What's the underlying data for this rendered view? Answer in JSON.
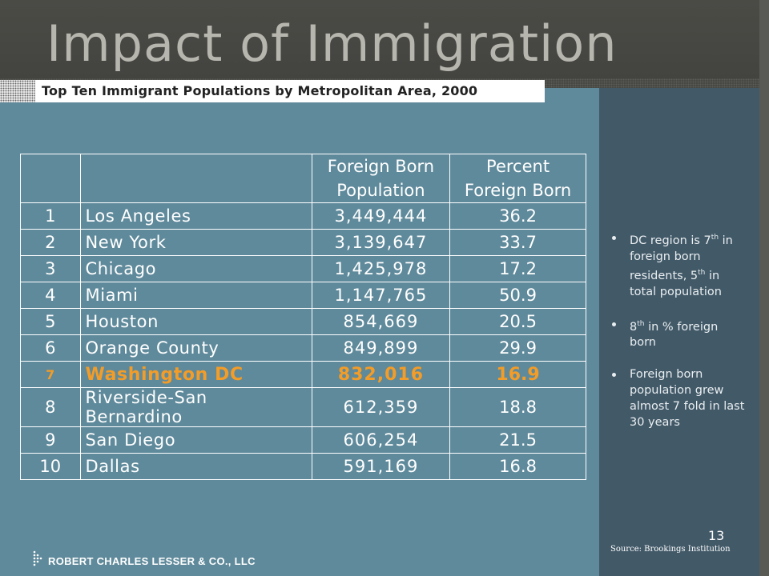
{
  "slide": {
    "title": "Impact of Immigration",
    "subtitle": "Top Ten Immigrant Populations by Metropolitan Area, 2000",
    "page_number": "13",
    "source": "Source: Brookings Institution",
    "footer": "ROBERT CHARLES LESSER & CO., LLC"
  },
  "table": {
    "headers": {
      "pop_line1": "Foreign Born",
      "pop_line2": "Population",
      "pct_line1": "Percent",
      "pct_line2": "Foreign Born"
    },
    "rows": [
      {
        "rank": "1",
        "city": "Los Angeles",
        "population": "3,449,444",
        "percent": "36.2"
      },
      {
        "rank": "2",
        "city": "New York",
        "population": "3,139,647",
        "percent": "33.7"
      },
      {
        "rank": "3",
        "city": "Chicago",
        "population": "1,425,978",
        "percent": "17.2"
      },
      {
        "rank": "4",
        "city": "Miami",
        "population": "1,147,765",
        "percent": "50.9"
      },
      {
        "rank": "5",
        "city": "Houston",
        "population": "854,669",
        "percent": "20.5"
      },
      {
        "rank": "6",
        "city": "Orange County",
        "population": "849,899",
        "percent": "29.9"
      },
      {
        "rank": "7",
        "city": "Washington DC",
        "population": "832,016",
        "percent": "16.9"
      },
      {
        "rank": "8",
        "city": "Riverside-San Bernardino",
        "population": "612,359",
        "percent": "18.8"
      },
      {
        "rank": "9",
        "city": "San Diego",
        "population": "606,254",
        "percent": "21.5"
      },
      {
        "rank": "10",
        "city": "Dallas",
        "population": "591,169",
        "percent": "16.8"
      }
    ],
    "highlight_color": "#f39c27"
  },
  "bullets": [
    {
      "pre": "DC region is 7",
      "sup1": "th",
      "mid": " in foreign born residents, 5",
      "sup2": "th",
      "post": " in total population"
    },
    {
      "pre": "8",
      "sup1": "th",
      "mid": " in % foreign born",
      "sup2": "",
      "post": ""
    },
    {
      "pre": "Foreign born population grew almost 7 fold in last 30 years",
      "sup1": "",
      "mid": "",
      "sup2": "",
      "post": ""
    }
  ]
}
